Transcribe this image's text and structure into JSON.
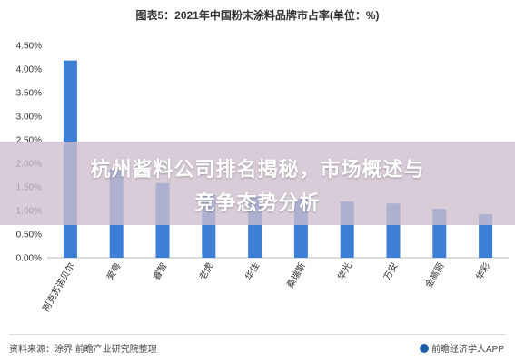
{
  "chart_data": {
    "type": "bar",
    "title": "图表5：2021年中国粉末涂料品牌市占率(单位：%)",
    "categories": [
      "阿克苏诺贝尔",
      "爱粤",
      "睿智",
      "老虎",
      "华佳",
      "桑瑞斯",
      "华光",
      "万安",
      "金高丽",
      "华彩"
    ],
    "values": [
      4.18,
      1.88,
      1.58,
      1.33,
      1.3,
      1.25,
      1.19,
      1.15,
      1.04,
      0.92
    ],
    "ylim": [
      0,
      4.5
    ],
    "yticks": [
      "0.00%",
      "0.50%",
      "1.00%",
      "1.50%",
      "2.00%",
      "2.50%",
      "3.00%",
      "3.50%",
      "4.00%",
      "4.50%"
    ],
    "grid": false,
    "bar_color": "#3d7fd6"
  },
  "banner": {
    "line1": "杭州酱料公司排名揭秘，市场概述与",
    "line2": "竞争态势分析"
  },
  "footer": {
    "source": "资料来源：涂界 前瞻产业研究院整理",
    "brand": "前瞻经济学人APP"
  }
}
